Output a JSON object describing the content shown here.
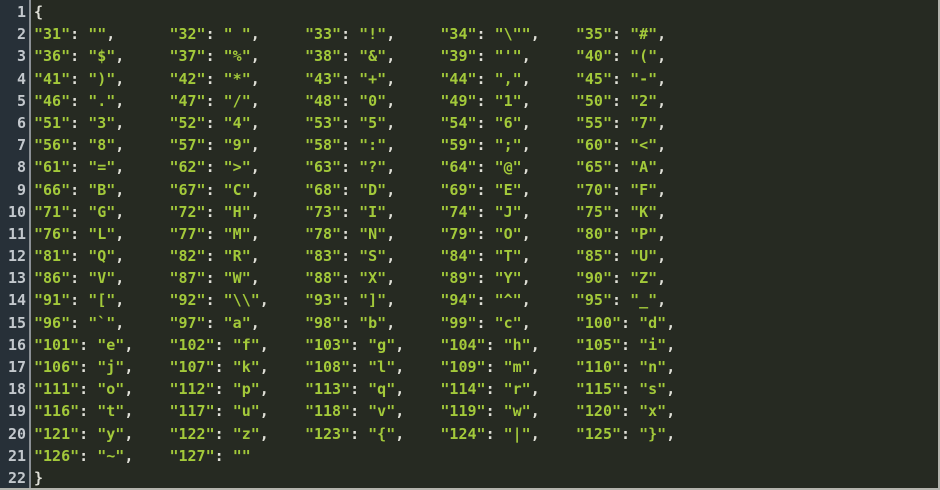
{
  "window": {
    "border_color": "#b4b4ae"
  },
  "editor": {
    "background": "#262a22",
    "gutter": {
      "background": "#273038",
      "border_color": "#8c9196",
      "text_color": "#c3c8cd",
      "line_numbers": [
        1,
        2,
        3,
        4,
        5,
        6,
        7,
        8,
        9,
        10,
        11,
        12,
        13,
        14,
        15,
        16,
        17,
        18,
        19,
        20,
        21,
        22
      ]
    },
    "syntax": {
      "string_color": "#a3c93a",
      "punctuation_color": "#e0e0d8"
    },
    "code": {
      "open_brace": "{",
      "close_brace": "}",
      "entries_per_row": 5,
      "cell_width_chars": 15,
      "key_value_separator": ": ",
      "entry_terminator": ",",
      "pairs": [
        [
          "31",
          ""
        ],
        [
          "32",
          " "
        ],
        [
          "33",
          "!"
        ],
        [
          "34",
          "\""
        ],
        [
          "35",
          "#"
        ],
        [
          "36",
          "$"
        ],
        [
          "37",
          "%"
        ],
        [
          "38",
          "&"
        ],
        [
          "39",
          "'"
        ],
        [
          "40",
          "("
        ],
        [
          "41",
          ")"
        ],
        [
          "42",
          "*"
        ],
        [
          "43",
          "+"
        ],
        [
          "44",
          ","
        ],
        [
          "45",
          "-"
        ],
        [
          "46",
          "."
        ],
        [
          "47",
          "/"
        ],
        [
          "48",
          "0"
        ],
        [
          "49",
          "1"
        ],
        [
          "50",
          "2"
        ],
        [
          "51",
          "3"
        ],
        [
          "52",
          "4"
        ],
        [
          "53",
          "5"
        ],
        [
          "54",
          "6"
        ],
        [
          "55",
          "7"
        ],
        [
          "56",
          "8"
        ],
        [
          "57",
          "9"
        ],
        [
          "58",
          ":"
        ],
        [
          "59",
          ";"
        ],
        [
          "60",
          "<"
        ],
        [
          "61",
          "="
        ],
        [
          "62",
          ">"
        ],
        [
          "63",
          "?"
        ],
        [
          "64",
          "@"
        ],
        [
          "65",
          "A"
        ],
        [
          "66",
          "B"
        ],
        [
          "67",
          "C"
        ],
        [
          "68",
          "D"
        ],
        [
          "69",
          "E"
        ],
        [
          "70",
          "F"
        ],
        [
          "71",
          "G"
        ],
        [
          "72",
          "H"
        ],
        [
          "73",
          "I"
        ],
        [
          "74",
          "J"
        ],
        [
          "75",
          "K"
        ],
        [
          "76",
          "L"
        ],
        [
          "77",
          "M"
        ],
        [
          "78",
          "N"
        ],
        [
          "79",
          "O"
        ],
        [
          "80",
          "P"
        ],
        [
          "81",
          "Q"
        ],
        [
          "82",
          "R"
        ],
        [
          "83",
          "S"
        ],
        [
          "84",
          "T"
        ],
        [
          "85",
          "U"
        ],
        [
          "86",
          "V"
        ],
        [
          "87",
          "W"
        ],
        [
          "88",
          "X"
        ],
        [
          "89",
          "Y"
        ],
        [
          "90",
          "Z"
        ],
        [
          "91",
          "["
        ],
        [
          "92",
          "\\"
        ],
        [
          "93",
          "]"
        ],
        [
          "94",
          "^"
        ],
        [
          "95",
          "_"
        ],
        [
          "96",
          "`"
        ],
        [
          "97",
          "a"
        ],
        [
          "98",
          "b"
        ],
        [
          "99",
          "c"
        ],
        [
          "100",
          "d"
        ],
        [
          "101",
          "e"
        ],
        [
          "102",
          "f"
        ],
        [
          "103",
          "g"
        ],
        [
          "104",
          "h"
        ],
        [
          "105",
          "i"
        ],
        [
          "106",
          "j"
        ],
        [
          "107",
          "k"
        ],
        [
          "108",
          "l"
        ],
        [
          "109",
          "m"
        ],
        [
          "110",
          "n"
        ],
        [
          "111",
          "o"
        ],
        [
          "112",
          "p"
        ],
        [
          "113",
          "q"
        ],
        [
          "114",
          "r"
        ],
        [
          "115",
          "s"
        ],
        [
          "116",
          "t"
        ],
        [
          "117",
          "u"
        ],
        [
          "118",
          "v"
        ],
        [
          "119",
          "w"
        ],
        [
          "120",
          "x"
        ],
        [
          "121",
          "y"
        ],
        [
          "122",
          "z"
        ],
        [
          "123",
          "{"
        ],
        [
          "124",
          "|"
        ],
        [
          "125",
          "}"
        ],
        [
          "126",
          "~"
        ],
        [
          "127",
          ""
        ]
      ]
    }
  }
}
